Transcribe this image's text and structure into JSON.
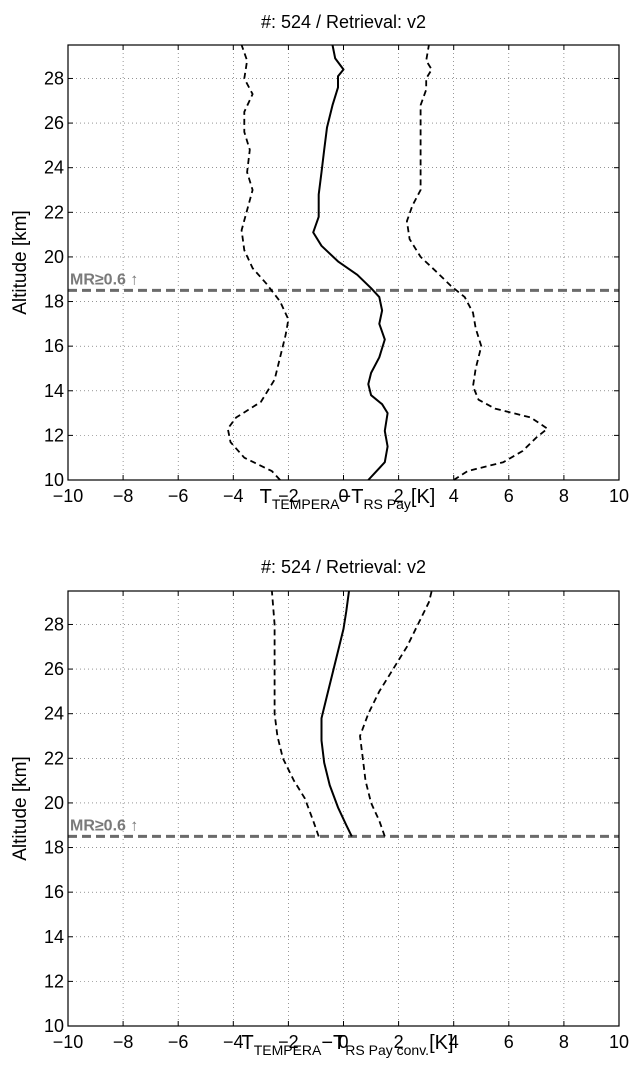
{
  "chart_data": [
    {
      "type": "line",
      "title": "#: 524 / Retrieval: v2",
      "ylabel": "Altitude [km]",
      "xlabel": {
        "main": "T",
        "sub1": "TEMPERA",
        "dash": "−T",
        "sub2": "RS Pay",
        "unit": "[K]"
      },
      "xlim": [
        -10,
        10
      ],
      "ylim": [
        10,
        29.5
      ],
      "xticks": [
        -10,
        -8,
        -6,
        -4,
        -2,
        0,
        2,
        4,
        6,
        8,
        10
      ],
      "xtick_labels": [
        "−10",
        "−8",
        "−6",
        "−4",
        "−2",
        "0",
        "2",
        "4",
        "6",
        "8",
        "10"
      ],
      "yticks": [
        10,
        12,
        14,
        16,
        18,
        20,
        22,
        24,
        26,
        28
      ],
      "ytick_labels": [
        "10",
        "12",
        "14",
        "16",
        "18",
        "20",
        "22",
        "24",
        "26",
        "28"
      ],
      "grid": true,
      "annotation": {
        "text": "MR≥0.6 ↑",
        "altitude": 18.5
      },
      "series": [
        {
          "style": "solid",
          "points": [
            [
              0.9,
              10
            ],
            [
              1.2,
              10.4
            ],
            [
              1.5,
              10.8
            ],
            [
              1.6,
              11.5
            ],
            [
              1.5,
              12.2
            ],
            [
              1.6,
              13
            ],
            [
              1.4,
              13.4
            ],
            [
              1.0,
              13.8
            ],
            [
              0.9,
              14.3
            ],
            [
              1.0,
              14.8
            ],
            [
              1.3,
              15.5
            ],
            [
              1.5,
              16.3
            ],
            [
              1.3,
              17.0
            ],
            [
              1.4,
              17.6
            ],
            [
              1.3,
              18.2
            ],
            [
              1.0,
              18.6
            ],
            [
              0.5,
              19.2
            ],
            [
              -0.2,
              19.8
            ],
            [
              -0.8,
              20.5
            ],
            [
              -1.1,
              21.1
            ],
            [
              -0.9,
              21.8
            ],
            [
              -0.9,
              22.8
            ],
            [
              -0.8,
              23.8
            ],
            [
              -0.7,
              24.8
            ],
            [
              -0.6,
              25.8
            ],
            [
              -0.4,
              26.8
            ],
            [
              -0.2,
              27.6
            ],
            [
              -0.2,
              28.1
            ],
            [
              0.0,
              28.4
            ],
            [
              -0.3,
              28.9
            ],
            [
              -0.4,
              29.5
            ]
          ]
        },
        {
          "style": "dashed",
          "points": [
            [
              -2.3,
              10
            ],
            [
              -2.6,
              10.4
            ],
            [
              -3.6,
              11.0
            ],
            [
              -4.1,
              11.7
            ],
            [
              -4.2,
              12.3
            ],
            [
              -3.9,
              12.8
            ],
            [
              -3.0,
              13.5
            ],
            [
              -2.5,
              14.5
            ],
            [
              -2.3,
              15.5
            ],
            [
              -2.1,
              16.5
            ],
            [
              -2.0,
              17.2
            ],
            [
              -2.3,
              18.0
            ],
            [
              -2.8,
              18.8
            ],
            [
              -3.3,
              19.5
            ],
            [
              -3.6,
              20.3
            ],
            [
              -3.7,
              21.2
            ],
            [
              -3.5,
              22.1
            ],
            [
              -3.3,
              23.0
            ],
            [
              -3.5,
              23.8
            ],
            [
              -3.4,
              24.8
            ],
            [
              -3.6,
              25.6
            ],
            [
              -3.6,
              26.5
            ],
            [
              -3.3,
              27.3
            ],
            [
              -3.6,
              28.0
            ],
            [
              -3.5,
              28.8
            ],
            [
              -3.7,
              29.5
            ]
          ]
        },
        {
          "style": "dashed",
          "points": [
            [
              4.0,
              10
            ],
            [
              4.5,
              10.4
            ],
            [
              5.8,
              10.8
            ],
            [
              6.5,
              11.3
            ],
            [
              7.0,
              11.9
            ],
            [
              7.4,
              12.3
            ],
            [
              6.8,
              12.8
            ],
            [
              5.5,
              13.2
            ],
            [
              4.9,
              13.6
            ],
            [
              4.7,
              14.2
            ],
            [
              4.8,
              15.0
            ],
            [
              5.0,
              16.0
            ],
            [
              4.8,
              16.8
            ],
            [
              4.7,
              17.5
            ],
            [
              4.4,
              18.2
            ],
            [
              3.9,
              18.7
            ],
            [
              3.4,
              19.3
            ],
            [
              2.8,
              20.0
            ],
            [
              2.4,
              20.8
            ],
            [
              2.3,
              21.6
            ],
            [
              2.5,
              22.3
            ],
            [
              2.8,
              23.0
            ],
            [
              2.8,
              24.0
            ],
            [
              2.8,
              25.0
            ],
            [
              2.8,
              26.0
            ],
            [
              2.8,
              26.8
            ],
            [
              3.0,
              27.5
            ],
            [
              3.0,
              28.0
            ],
            [
              3.2,
              28.4
            ],
            [
              3.0,
              28.8
            ],
            [
              3.1,
              29.5
            ]
          ]
        }
      ]
    },
    {
      "type": "line",
      "title": "#: 524 / Retrieval: v2",
      "ylabel": "Altitude [km]",
      "xlabel": {
        "main": "T",
        "sub1": "TEMPERA",
        "dash": "−T",
        "sub2": "RS Pay conv.",
        "unit": "[K]"
      },
      "xlim": [
        -10,
        10
      ],
      "ylim": [
        10,
        29.5
      ],
      "xticks": [
        -10,
        -8,
        -6,
        -4,
        -2,
        0,
        2,
        4,
        6,
        8,
        10
      ],
      "xtick_labels": [
        "−10",
        "−8",
        "−6",
        "−4",
        "−2",
        "0",
        "2",
        "4",
        "6",
        "8",
        "10"
      ],
      "yticks": [
        10,
        12,
        14,
        16,
        18,
        20,
        22,
        24,
        26,
        28
      ],
      "ytick_labels": [
        "10",
        "12",
        "14",
        "16",
        "18",
        "20",
        "22",
        "24",
        "26",
        "28"
      ],
      "grid": true,
      "annotation": {
        "text": "MR≥0.6 ↑",
        "altitude": 18.5
      },
      "series": [
        {
          "style": "solid",
          "points": [
            [
              0.3,
              18.5
            ],
            [
              0.1,
              19.0
            ],
            [
              -0.2,
              19.8
            ],
            [
              -0.5,
              20.8
            ],
            [
              -0.7,
              21.8
            ],
            [
              -0.8,
              22.8
            ],
            [
              -0.8,
              23.8
            ],
            [
              -0.6,
              24.8
            ],
            [
              -0.4,
              25.8
            ],
            [
              -0.2,
              26.8
            ],
            [
              0.0,
              27.8
            ],
            [
              0.1,
              28.6
            ],
            [
              0.2,
              29.5
            ]
          ]
        },
        {
          "style": "dashed",
          "points": [
            [
              -0.9,
              18.5
            ],
            [
              -1.1,
              19.2
            ],
            [
              -1.4,
              20.2
            ],
            [
              -1.8,
              21.0
            ],
            [
              -2.2,
              22.0
            ],
            [
              -2.4,
              23.0
            ],
            [
              -2.5,
              24.0
            ],
            [
              -2.5,
              25.0
            ],
            [
              -2.5,
              26.0
            ],
            [
              -2.5,
              27.0
            ],
            [
              -2.5,
              28.0
            ],
            [
              -2.6,
              29.5
            ]
          ]
        },
        {
          "style": "dashed",
          "points": [
            [
              1.5,
              18.5
            ],
            [
              1.3,
              19.2
            ],
            [
              1.0,
              20.0
            ],
            [
              0.8,
              21.0
            ],
            [
              0.7,
              22.0
            ],
            [
              0.6,
              23.0
            ],
            [
              0.9,
              24.0
            ],
            [
              1.3,
              25.0
            ],
            [
              1.8,
              26.0
            ],
            [
              2.3,
              27.0
            ],
            [
              2.7,
              28.0
            ],
            [
              3.1,
              29.0
            ],
            [
              3.2,
              29.5
            ]
          ]
        }
      ]
    }
  ]
}
